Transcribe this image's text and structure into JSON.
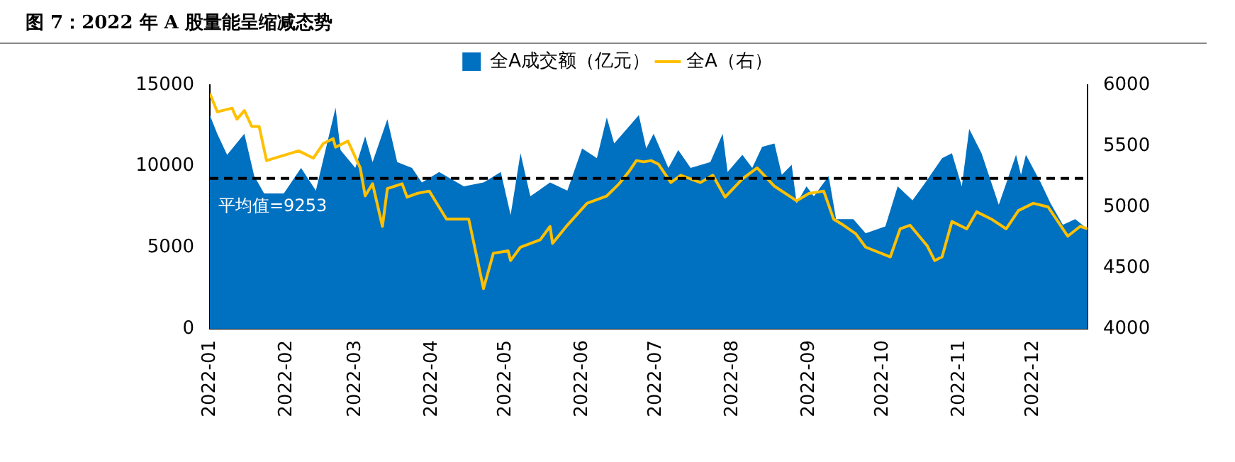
{
  "chart_data": {
    "type": "area",
    "title": "图 7：2022 年 A 股量能呈缩减态势",
    "series": [
      {
        "name": "全A成交额（亿元）",
        "color": "#0070c0",
        "x": [
          "2022-01-01",
          "2022-01-04",
          "2022-01-08",
          "2022-01-15",
          "2022-01-19",
          "2022-01-23",
          "2022-01-31",
          "2022-02-07",
          "2022-02-13",
          "2022-02-21",
          "2022-02-23",
          "2022-03-01",
          "2022-03-05",
          "2022-03-08",
          "2022-03-14",
          "2022-03-18",
          "2022-03-24",
          "2022-03-28",
          "2022-04-04",
          "2022-04-14",
          "2022-04-22",
          "2022-04-29",
          "2022-05-03",
          "2022-05-07",
          "2022-05-11",
          "2022-05-19",
          "2022-05-26",
          "2022-06-01",
          "2022-06-07",
          "2022-06-11",
          "2022-06-14",
          "2022-06-24",
          "2022-06-27",
          "2022-06-30",
          "2022-07-06",
          "2022-07-10",
          "2022-07-15",
          "2022-07-23",
          "2022-07-28",
          "2022-07-30",
          "2022-08-05",
          "2022-08-09",
          "2022-08-13",
          "2022-08-18",
          "2022-08-21",
          "2022-08-25",
          "2022-08-27",
          "2022-08-31",
          "2022-09-03",
          "2022-09-09",
          "2022-09-12",
          "2022-09-19",
          "2022-09-24",
          "2022-10-02",
          "2022-10-07",
          "2022-10-13",
          "2022-10-18",
          "2022-10-25",
          "2022-10-29",
          "2022-11-02",
          "2022-11-05",
          "2022-11-10",
          "2022-11-17",
          "2022-11-24",
          "2022-11-26",
          "2022-11-28",
          "2022-12-04",
          "2022-12-08",
          "2022-12-13",
          "2022-12-18",
          "2022-12-23"
        ],
        "values": [
          13150,
          12000,
          10700,
          12000,
          9400,
          8330,
          8330,
          9900,
          8500,
          13600,
          11000,
          9900,
          11840,
          10260,
          12900,
          10260,
          9900,
          9000,
          9650,
          8770,
          9000,
          9650,
          7000,
          10800,
          8150,
          9000,
          8500,
          11100,
          10500,
          13000,
          11400,
          13150,
          11100,
          12000,
          9900,
          11000,
          9900,
          10260,
          12000,
          9650,
          10700,
          9900,
          11200,
          11400,
          9470,
          10090,
          7720,
          8770,
          8150,
          9400,
          6750,
          6750,
          5880,
          6300,
          8770,
          7900,
          8950,
          10500,
          10800,
          8770,
          12300,
          10800,
          7630,
          10700,
          9470,
          10700,
          9000,
          7720,
          6400,
          6750,
          6140
        ]
      },
      {
        "name": "全A（右）",
        "type": "line",
        "axis": "y2",
        "color": "#ffc000",
        "x": [
          "2022-01-01",
          "2022-01-04",
          "2022-01-10",
          "2022-01-12",
          "2022-01-15",
          "2022-01-18",
          "2022-01-21",
          "2022-01-24",
          "2022-02-06",
          "2022-02-12",
          "2022-02-16",
          "2022-02-20",
          "2022-02-21",
          "2022-02-26",
          "2022-03-03",
          "2022-03-05",
          "2022-03-08",
          "2022-03-12",
          "2022-03-14",
          "2022-03-20",
          "2022-03-22",
          "2022-03-26",
          "2022-03-31",
          "2022-04-07",
          "2022-04-16",
          "2022-04-22",
          "2022-04-26",
          "2022-05-02",
          "2022-05-03",
          "2022-05-07",
          "2022-05-15",
          "2022-05-19",
          "2022-05-20",
          "2022-05-26",
          "2022-06-03",
          "2022-06-11",
          "2022-06-16",
          "2022-06-20",
          "2022-06-23",
          "2022-06-26",
          "2022-06-29",
          "2022-07-02",
          "2022-07-07",
          "2022-07-11",
          "2022-07-19",
          "2022-07-24",
          "2022-07-29",
          "2022-08-05",
          "2022-08-11",
          "2022-08-18",
          "2022-08-27",
          "2022-09-01",
          "2022-09-07",
          "2022-09-11",
          "2022-09-15",
          "2022-09-20",
          "2022-09-24",
          "2022-10-04",
          "2022-10-08",
          "2022-10-12",
          "2022-10-19",
          "2022-10-22",
          "2022-10-25",
          "2022-10-29",
          "2022-11-04",
          "2022-11-08",
          "2022-11-14",
          "2022-11-20",
          "2022-11-25",
          "2022-12-01",
          "2022-12-07",
          "2022-12-15",
          "2022-12-20",
          "2022-12-23"
        ],
        "values": [
          5930,
          5780,
          5810,
          5720,
          5790,
          5660,
          5660,
          5380,
          5460,
          5400,
          5520,
          5560,
          5490,
          5540,
          5320,
          5090,
          5190,
          4840,
          5150,
          5190,
          5080,
          5110,
          5130,
          4900,
          4900,
          4330,
          4620,
          4640,
          4560,
          4670,
          4730,
          4840,
          4700,
          4850,
          5030,
          5090,
          5190,
          5290,
          5380,
          5370,
          5380,
          5350,
          5200,
          5260,
          5200,
          5260,
          5080,
          5230,
          5320,
          5170,
          5050,
          5110,
          5130,
          4900,
          4850,
          4780,
          4670,
          4590,
          4820,
          4850,
          4680,
          4560,
          4590,
          4880,
          4820,
          4960,
          4900,
          4820,
          4970,
          5030,
          5000,
          4760,
          4840,
          4820
        ]
      }
    ],
    "xlim": [
      "2022-01-01",
      "2022-12-23"
    ],
    "xticks": [
      {
        "value": "2022-01",
        "label": "2022-01"
      },
      {
        "value": "2022-02",
        "label": "2022-02"
      },
      {
        "value": "2022-03",
        "label": "2022-03"
      },
      {
        "value": "2022-04",
        "label": "2022-04"
      },
      {
        "value": "2022-05",
        "label": "2022-05"
      },
      {
        "value": "2022-06",
        "label": "2022-06"
      },
      {
        "value": "2022-07",
        "label": "2022-07"
      },
      {
        "value": "2022-08",
        "label": "2022-08"
      },
      {
        "value": "2022-09",
        "label": "2022-09"
      },
      {
        "value": "2022-10",
        "label": "2022-10"
      },
      {
        "value": "2022-11",
        "label": "2022-11"
      },
      {
        "value": "2022-12",
        "label": "2022-12"
      }
    ],
    "ylim": [
      0,
      15000
    ],
    "yticks": [
      0,
      5000,
      10000,
      15000
    ],
    "y2lim": [
      4000,
      6000
    ],
    "y2ticks": [
      4000,
      4500,
      5000,
      5500,
      6000
    ],
    "ref_lines": [
      {
        "axis": "y",
        "value": 9253,
        "label": "平均值=9253",
        "color": "#000000",
        "line_style": "dashed"
      }
    ],
    "grid": false,
    "legend": "top"
  }
}
